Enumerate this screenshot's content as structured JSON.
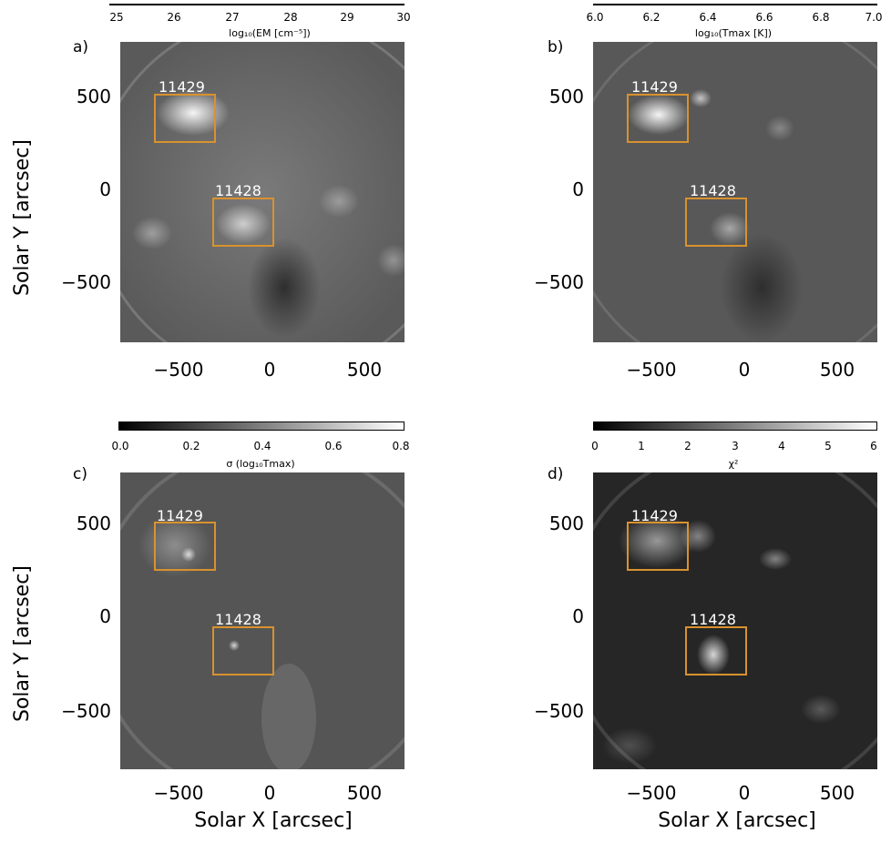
{
  "panels": [
    {
      "label": "a)",
      "colorbar": {
        "ticks": [
          "25",
          "26",
          "27",
          "28",
          "29",
          "30"
        ],
        "title": "log₁₀(EM [cm⁻⁵])",
        "style": "line"
      },
      "image_tone": "#6e6e6e",
      "ar_north": "11429",
      "ar_south": "11428",
      "show_y_axis_title": true,
      "show_x_axis_title": false
    },
    {
      "label": "b)",
      "colorbar": {
        "ticks": [
          "6.0",
          "6.2",
          "6.4",
          "6.6",
          "6.8",
          "7.0"
        ],
        "title": "log₁₀(Tmax [K])",
        "style": "line"
      },
      "image_tone": "#505050",
      "ar_north": "11429",
      "ar_south": "11428",
      "show_y_axis_title": false,
      "show_x_axis_title": false
    },
    {
      "label": "c)",
      "colorbar": {
        "ticks": [
          "0.0",
          "0.2",
          "0.4",
          "0.6",
          "0.8"
        ],
        "title": "σ (log₁₀Tmax)",
        "style": "gray"
      },
      "image_tone": "#5a5a5a",
      "ar_north": "11429",
      "ar_south": "11428",
      "show_y_axis_title": true,
      "show_x_axis_title": true
    },
    {
      "label": "d)",
      "colorbar": {
        "ticks": [
          "0",
          "1",
          "2",
          "3",
          "4",
          "5",
          "6"
        ],
        "title": "χ²",
        "style": "gray"
      },
      "image_tone": "#2a2a2a",
      "ar_north": "11429",
      "ar_south": "11428",
      "show_y_axis_title": false,
      "show_x_axis_title": true
    }
  ],
  "axes": {
    "y_ticks": [
      "500",
      "0",
      "−500"
    ],
    "x_ticks": [
      "−500",
      "0",
      "500"
    ],
    "y_title": "Solar Y [arcsec]",
    "x_title": "Solar X [arcsec]"
  },
  "colors": {
    "box": "#d9922e",
    "ar_text": "#ffffff"
  }
}
